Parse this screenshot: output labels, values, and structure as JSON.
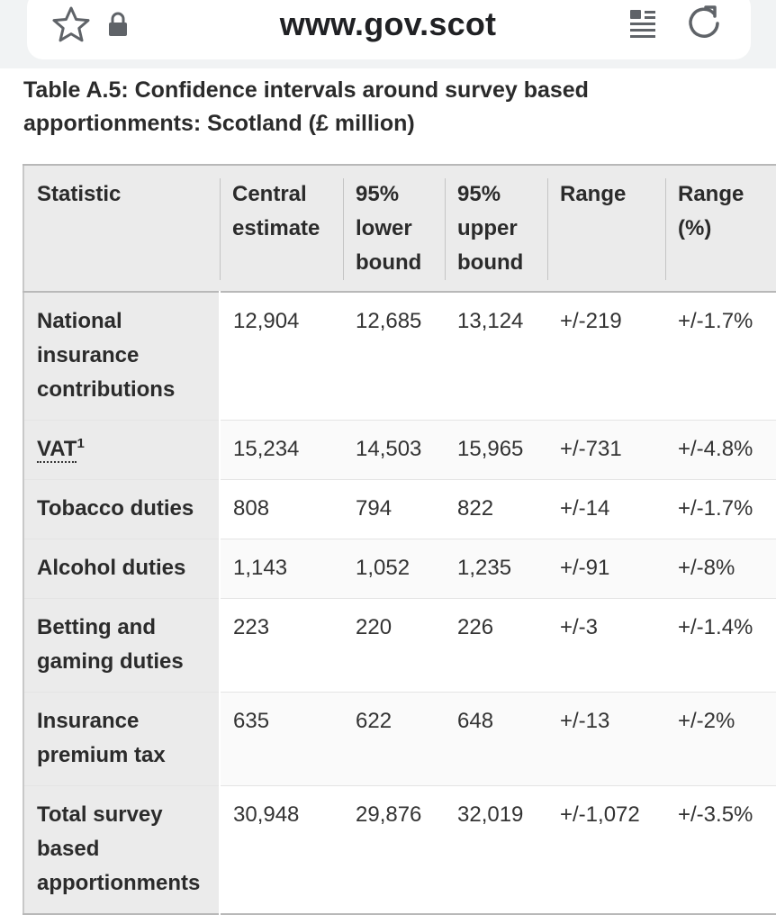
{
  "browser": {
    "url": "www.gov.scot",
    "icons": [
      "star-icon",
      "lock-icon",
      "reader-mode-icon",
      "reload-icon"
    ]
  },
  "table": {
    "caption": "Table A.5: Confidence intervals around survey based apportionments: Scotland (£ million)",
    "headers": [
      "Statistic",
      "Central estimate",
      "95% lower bound",
      "95% upper bound",
      "Range",
      "Range (%)"
    ],
    "rows": [
      {
        "statistic": "National insurance contributions",
        "central": "12,904",
        "lower": "12,685",
        "upper": "13,124",
        "range": "+/-219",
        "range_pct": "+/-1.7%"
      },
      {
        "statistic": "VAT",
        "footnote": "1",
        "central": "15,234",
        "lower": "14,503",
        "upper": "15,965",
        "range": "+/-731",
        "range_pct": "+/-4.8%"
      },
      {
        "statistic": "Tobacco duties",
        "central": "808",
        "lower": "794",
        "upper": "822",
        "range": "+/-14",
        "range_pct": "+/-1.7%"
      },
      {
        "statistic": "Alcohol duties",
        "central": "1,143",
        "lower": "1,052",
        "upper": "1,235",
        "range": "+/-91",
        "range_pct": "+/-8%"
      },
      {
        "statistic": "Betting and gaming duties",
        "central": "223",
        "lower": "220",
        "upper": "226",
        "range": "+/-3",
        "range_pct": "+/-1.4%"
      },
      {
        "statistic": "Insurance premium tax",
        "central": "635",
        "lower": "622",
        "upper": "648",
        "range": "+/-13",
        "range_pct": "+/-2%"
      },
      {
        "statistic": "Total survey based apportionments",
        "central": "30,948",
        "lower": "29,876",
        "upper": "32,019",
        "range": "+/-1,072",
        "range_pct": "+/-3.5%"
      }
    ]
  }
}
